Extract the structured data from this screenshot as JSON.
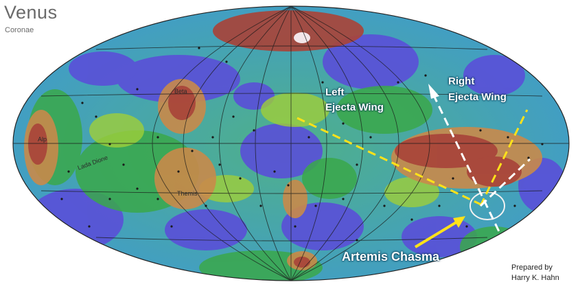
{
  "map": {
    "title": "Venus",
    "subtitle": "Coronae",
    "annotations": {
      "left_wing_line1": "Left",
      "left_wing_line2": "Ejecta Wing",
      "right_wing_line1": "Right",
      "right_wing_line2": "Ejecta Wing",
      "chasma": "Artemis Chasma"
    },
    "features": {
      "alpha": "Alp",
      "beta": "Beta",
      "themis": "Themis",
      "dione": "Lada Dione"
    },
    "credit_line1": "Prepared by",
    "credit_line2": "Harry K. Hahn"
  },
  "colors": {
    "lowland": "#5a4fd8",
    "plains": "#3aa84a",
    "midland": "#7fc23a",
    "upland": "#c98a4a",
    "highland": "#a8443a",
    "dashed_yellow": "#ffe21a",
    "dashed_white": "#ffffff"
  }
}
